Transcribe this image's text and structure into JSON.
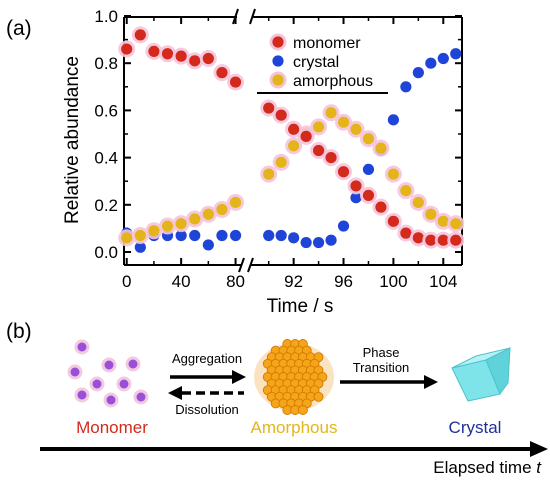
{
  "panel_a_label": "(a)",
  "panel_b_label": "(b)",
  "chart_data": {
    "type": "scatter",
    "title": "",
    "ylabel": "Relative abundance",
    "xlabel": "Time / s",
    "ylim": [
      0.0,
      1.0
    ],
    "y_ticks": [
      0.0,
      0.2,
      0.4,
      0.6,
      0.8,
      1.0
    ],
    "y_tick_labels": [
      "0.0",
      "0.2",
      "0.4",
      "0.6",
      "0.8",
      "1.0"
    ],
    "broken_x_axis": true,
    "segments": [
      {
        "xlim": [
          -2,
          84
        ],
        "ticks": [
          0,
          40,
          80
        ],
        "tick_labels": [
          "0",
          "40",
          "80"
        ]
      },
      {
        "xlim": [
          88.5,
          105.5
        ],
        "ticks": [
          92,
          96,
          100,
          104
        ],
        "tick_labels": [
          "92",
          "96",
          "100",
          "104"
        ]
      }
    ],
    "legend_position": "top-right",
    "series": [
      {
        "name": "monomer",
        "color": "#d42a1c",
        "halo": "#f5c3dc",
        "points": [
          [
            0,
            0.86
          ],
          [
            10,
            0.92
          ],
          [
            20,
            0.85
          ],
          [
            30,
            0.84
          ],
          [
            40,
            0.83
          ],
          [
            50,
            0.81
          ],
          [
            60,
            0.82
          ],
          [
            70,
            0.76
          ],
          [
            80,
            0.72
          ],
          [
            90,
            0.61
          ],
          [
            91,
            0.58
          ],
          [
            92,
            0.52
          ],
          [
            93,
            0.49
          ],
          [
            94,
            0.43
          ],
          [
            95,
            0.4
          ],
          [
            96,
            0.34
          ],
          [
            97,
            0.28
          ],
          [
            98,
            0.24
          ],
          [
            99,
            0.19
          ],
          [
            100,
            0.13
          ],
          [
            101,
            0.08
          ],
          [
            102,
            0.06
          ],
          [
            103,
            0.05
          ],
          [
            104,
            0.05
          ],
          [
            105,
            0.05
          ]
        ]
      },
      {
        "name": "crystal",
        "color": "#1f45d8",
        "halo": "",
        "points": [
          [
            0,
            0.08
          ],
          [
            10,
            0.02
          ],
          [
            20,
            0.07
          ],
          [
            30,
            0.07
          ],
          [
            40,
            0.07
          ],
          [
            50,
            0.07
          ],
          [
            60,
            0.03
          ],
          [
            70,
            0.07
          ],
          [
            80,
            0.07
          ],
          [
            90,
            0.07
          ],
          [
            91,
            0.07
          ],
          [
            92,
            0.06
          ],
          [
            93,
            0.04
          ],
          [
            94,
            0.04
          ],
          [
            95,
            0.05
          ],
          [
            96,
            0.11
          ],
          [
            97,
            0.23
          ],
          [
            98,
            0.35
          ],
          [
            99,
            0.43
          ],
          [
            100,
            0.56
          ],
          [
            101,
            0.7
          ],
          [
            102,
            0.76
          ],
          [
            103,
            0.8
          ],
          [
            104,
            0.82
          ],
          [
            105,
            0.84
          ]
        ]
      },
      {
        "name": "amorphous",
        "color": "#e3b51b",
        "halo": "#f5c3dc",
        "points": [
          [
            0,
            0.06
          ],
          [
            10,
            0.07
          ],
          [
            20,
            0.09
          ],
          [
            30,
            0.11
          ],
          [
            40,
            0.12
          ],
          [
            50,
            0.14
          ],
          [
            60,
            0.16
          ],
          [
            70,
            0.18
          ],
          [
            80,
            0.21
          ],
          [
            90,
            0.33
          ],
          [
            91,
            0.38
          ],
          [
            92,
            0.45
          ],
          [
            93,
            0.5
          ],
          [
            94,
            0.53
          ],
          [
            95,
            0.59
          ],
          [
            96,
            0.55
          ],
          [
            97,
            0.52
          ],
          [
            98,
            0.48
          ],
          [
            99,
            0.44
          ],
          [
            100,
            0.33
          ],
          [
            101,
            0.26
          ],
          [
            102,
            0.21
          ],
          [
            103,
            0.16
          ],
          [
            104,
            0.13
          ],
          [
            105,
            0.12
          ]
        ]
      }
    ]
  },
  "schematic": {
    "aggregation_label": "Aggregation",
    "dissolution_label": "Dissolution",
    "phase_transition_line1": "Phase",
    "phase_transition_line2": "Transition",
    "monomer_label": "Monomer",
    "amorphous_label": "Amorphous",
    "crystal_label": "Crystal",
    "elapsed_time_label": "Elapsed time",
    "elapsed_time_var": "t",
    "monomer_color": "#d42a1c",
    "amorphous_color": "#e3b51b",
    "crystal_color": "#1f2f9c",
    "monomer_dot_color": "#9a4fd8",
    "cluster_fill": "#f5a51a",
    "cluster_stroke": "#d47a00",
    "crystal_fill": "#7fe3ea"
  }
}
